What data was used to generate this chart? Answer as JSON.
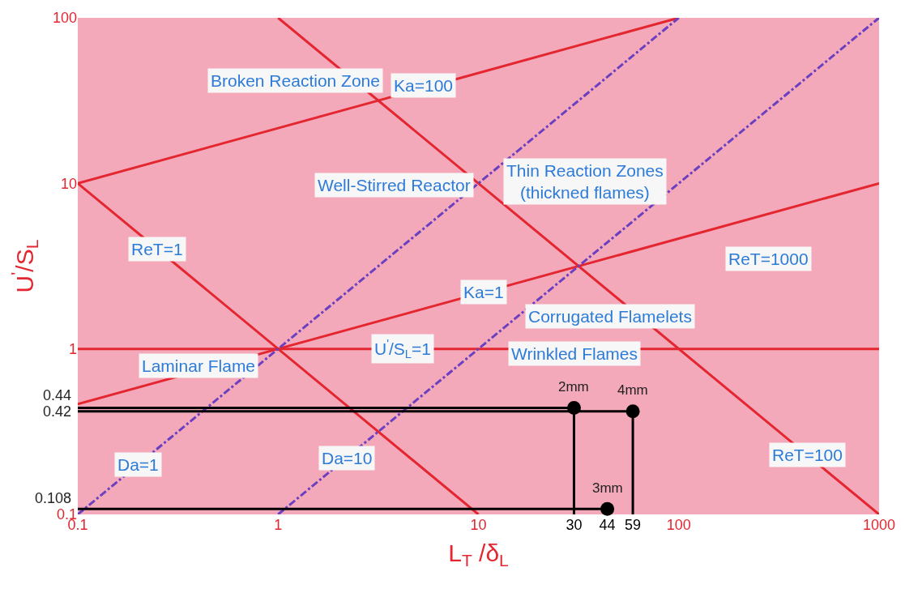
{
  "chart_data": {
    "type": "line",
    "xlabel": "L$_{T}$ /δ$_{L}$",
    "ylabel": "U$^{'}$/S$_{L}$",
    "log": "xy",
    "grid": false,
    "xlim": [
      0.1,
      1000
    ],
    "ylim": [
      0.1,
      100
    ],
    "xticks": [
      0.1,
      1,
      10,
      30,
      44,
      59,
      100,
      1000
    ],
    "yticks": [
      0.1,
      1,
      10,
      100
    ],
    "series": [
      {
        "type": "line",
        "color": "#e3262f",
        "line_style": "solid",
        "marker": "none",
        "x": [
          0.1,
          100
        ],
        "values": [
          10,
          100
        ]
      },
      {
        "type": "line",
        "color": "#e3262f",
        "line_style": "solid",
        "marker": "none",
        "x": [
          0.1,
          1000
        ],
        "values": [
          0.464,
          10
        ]
      },
      {
        "type": "line",
        "color": "#e3262f",
        "line_style": "solid",
        "marker": "none",
        "x": [
          0.1,
          10
        ],
        "values": [
          10,
          0.1
        ]
      },
      {
        "type": "line",
        "color": "#e3262f",
        "line_style": "solid",
        "marker": "none",
        "x": [
          1,
          1000
        ],
        "values": [
          100,
          0.1
        ]
      },
      {
        "type": "line",
        "color": "#e3262f",
        "line_style": "solid",
        "marker": "none",
        "x": [
          0.1,
          1000
        ],
        "values": [
          1,
          1
        ]
      },
      {
        "type": "line",
        "color": "#6a3fc0",
        "line_style": "dashdot",
        "marker": "none",
        "x": [
          0.1,
          100
        ],
        "values": [
          0.1,
          100
        ]
      },
      {
        "type": "line",
        "color": "#6a3fc0",
        "line_style": "dashdot",
        "marker": "none",
        "x": [
          1,
          1000
        ],
        "values": [
          0.1,
          100
        ]
      },
      {
        "type": "line",
        "color": "#000000",
        "line_style": "solid",
        "marker": "none",
        "x": [
          0.1,
          30,
          30
        ],
        "values": [
          0.44,
          0.44,
          0.1
        ]
      },
      {
        "type": "line",
        "color": "#000000",
        "line_style": "solid",
        "marker": "none",
        "x": [
          0.1,
          59,
          59
        ],
        "values": [
          0.42,
          0.42,
          0.1
        ]
      },
      {
        "type": "line",
        "color": "#000000",
        "line_style": "solid",
        "marker": "none",
        "x": [
          0.1,
          44
        ],
        "values": [
          0.108,
          0.108
        ]
      },
      {
        "type": "scatter",
        "color": "#000000",
        "marker": "circle",
        "x": [
          30,
          59,
          44
        ],
        "values": [
          0.44,
          0.42,
          0.108
        ]
      }
    ],
    "annotations": [
      "Broken Reaction Zone",
      {
        "text": "Ka=100",
        "x": 5.3,
        "y": 39
      },
      "Thin Reaction Zones\n(thickned flames)",
      "Well-Stirred Reactor",
      {
        "text": "ReT=1",
        "x": 0.25,
        "y": 4
      },
      "ReT=1000",
      {
        "text": "Ka=1",
        "x": 10.6,
        "y": 2.2
      },
      "Corrugated Flamelets",
      {
        "text": "Laminar Flame",
        "x": 0.4,
        "y": 0.79
      },
      {
        "text": "U$^{'}$/S$_{L}$=1",
        "x": 4.2,
        "y": 1
      },
      "Wrinkled Flames",
      {
        "text": "ReT=100",
        "x": 437,
        "y": 0.229
      },
      {
        "text": "Da=1",
        "x": 0.2,
        "y": 0.2
      },
      {
        "text": "Da=10",
        "x": 2.2,
        "y": 0.22
      },
      {
        "text": "2mm",
        "x": 30,
        "y": 0.44
      },
      {
        "text": "4mm",
        "x": 59,
        "y": 0.42
      },
      {
        "text": "3mm",
        "x": 44,
        "y": 0.108
      },
      {
        "text": "0.44",
        "x": 0.1,
        "y": 0.44
      },
      {
        "text": "0.42",
        "x": 0.1,
        "y": 0.42
      },
      {
        "text": "0.108",
        "x": 0.1,
        "y": 0.108
      }
    ]
  }
}
